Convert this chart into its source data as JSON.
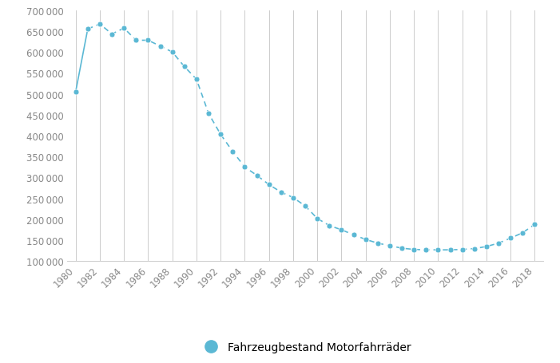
{
  "years": [
    1980,
    1981,
    1982,
    1983,
    1984,
    1985,
    1986,
    1987,
    1988,
    1989,
    1990,
    1991,
    1992,
    1993,
    1994,
    1995,
    1996,
    1997,
    1998,
    1999,
    2000,
    2001,
    2002,
    2003,
    2004,
    2005,
    2006,
    2007,
    2008,
    2009,
    2010,
    2011,
    2012,
    2013,
    2014,
    2015,
    2016,
    2017,
    2018
  ],
  "values": [
    505000,
    655000,
    667000,
    643000,
    657000,
    628000,
    628000,
    614000,
    600000,
    565000,
    535000,
    453000,
    403000,
    362000,
    325000,
    305000,
    283000,
    265000,
    252000,
    232000,
    202000,
    185000,
    175000,
    163000,
    152000,
    143000,
    137000,
    131000,
    128000,
    127000,
    127000,
    127000,
    128000,
    130000,
    135000,
    143000,
    155000,
    168000,
    188000
  ],
  "line_color": "#5bb8d4",
  "marker_color": "#5bb8d4",
  "marker_size": 5,
  "line_width": 1.2,
  "legend_label": "Fahrzeugbestand Motorfahrräder",
  "ylim": [
    100000,
    700000
  ],
  "yticks": [
    100000,
    150000,
    200000,
    250000,
    300000,
    350000,
    400000,
    450000,
    500000,
    550000,
    600000,
    650000,
    700000
  ],
  "xticks": [
    1980,
    1982,
    1984,
    1986,
    1988,
    1990,
    1992,
    1994,
    1996,
    1998,
    2000,
    2002,
    2004,
    2006,
    2008,
    2010,
    2012,
    2014,
    2016,
    2018
  ],
  "background_color": "#ffffff",
  "grid_color": "#cccccc",
  "tick_label_color": "#888888",
  "legend_fontsize": 10,
  "tick_fontsize": 8.5,
  "solid_segment": [
    1980,
    1981
  ],
  "xlim_left": 1979.3,
  "xlim_right": 2018.7
}
